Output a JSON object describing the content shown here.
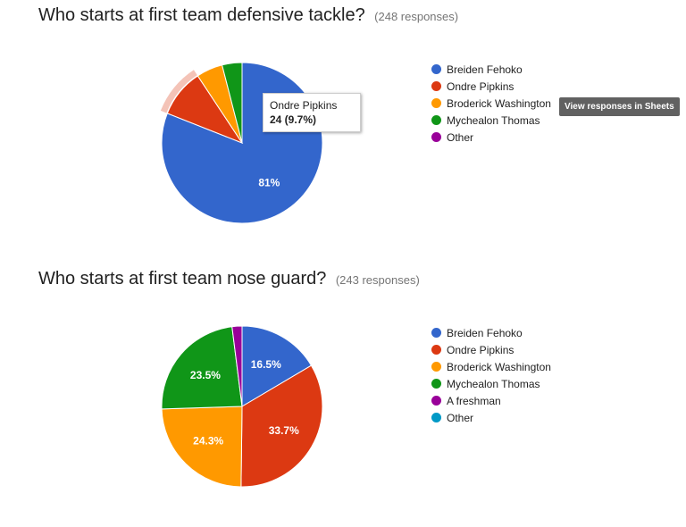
{
  "questions": [
    {
      "title": "Who starts at first team defensive tackle?",
      "response_count": "(248 responses)",
      "legend": [
        {
          "label": "Breiden Fehoko",
          "color": "#3366cc"
        },
        {
          "label": "Ondre Pipkins",
          "color": "#dc3912"
        },
        {
          "label": "Broderick Washington",
          "color": "#ff9900"
        },
        {
          "label": "Mychealon Thomas",
          "color": "#109618"
        },
        {
          "label": "Other",
          "color": "#990099"
        }
      ],
      "tooltip": {
        "label": "Ondre Pipkins",
        "value": "24 (9.7%)"
      }
    },
    {
      "title": "Who starts at first team nose guard?",
      "response_count": "(243 responses)",
      "legend": [
        {
          "label": "Breiden Fehoko",
          "color": "#3366cc"
        },
        {
          "label": "Ondre Pipkins",
          "color": "#dc3912"
        },
        {
          "label": "Broderick Washington",
          "color": "#ff9900"
        },
        {
          "label": "Mychealon Thomas",
          "color": "#109618"
        },
        {
          "label": "A freshman",
          "color": "#990099"
        },
        {
          "label": "Other",
          "color": "#0099c6"
        }
      ]
    }
  ],
  "sheets_button": "View responses in Sheets",
  "chart_data": [
    {
      "type": "pie",
      "title": "Who starts at first team defensive tackle?",
      "slices": [
        {
          "name": "Breiden Fehoko",
          "value": 81,
          "label": "81%",
          "color": "#3366cc"
        },
        {
          "name": "Ondre Pipkins",
          "value": 9.7,
          "label": "",
          "color": "#dc3912",
          "highlighted": true
        },
        {
          "name": "Broderick Washington",
          "value": 5.3,
          "label": "",
          "color": "#ff9900"
        },
        {
          "name": "Mychealon Thomas",
          "value": 4,
          "label": "",
          "color": "#109618"
        },
        {
          "name": "Other",
          "value": 0,
          "label": "",
          "color": "#990099"
        }
      ]
    },
    {
      "type": "pie",
      "title": "Who starts at first team nose guard?",
      "slices": [
        {
          "name": "Breiden Fehoko",
          "value": 16.5,
          "label": "16.5%",
          "color": "#3366cc"
        },
        {
          "name": "Ondre Pipkins",
          "value": 33.7,
          "label": "33.7%",
          "color": "#dc3912"
        },
        {
          "name": "Broderick Washington",
          "value": 24.3,
          "label": "24.3%",
          "color": "#ff9900"
        },
        {
          "name": "Mychealon Thomas",
          "value": 23.5,
          "label": "23.5%",
          "color": "#109618"
        },
        {
          "name": "A freshman",
          "value": 2,
          "label": "",
          "color": "#990099"
        },
        {
          "name": "Other",
          "value": 0,
          "label": "",
          "color": "#0099c6"
        }
      ]
    }
  ]
}
